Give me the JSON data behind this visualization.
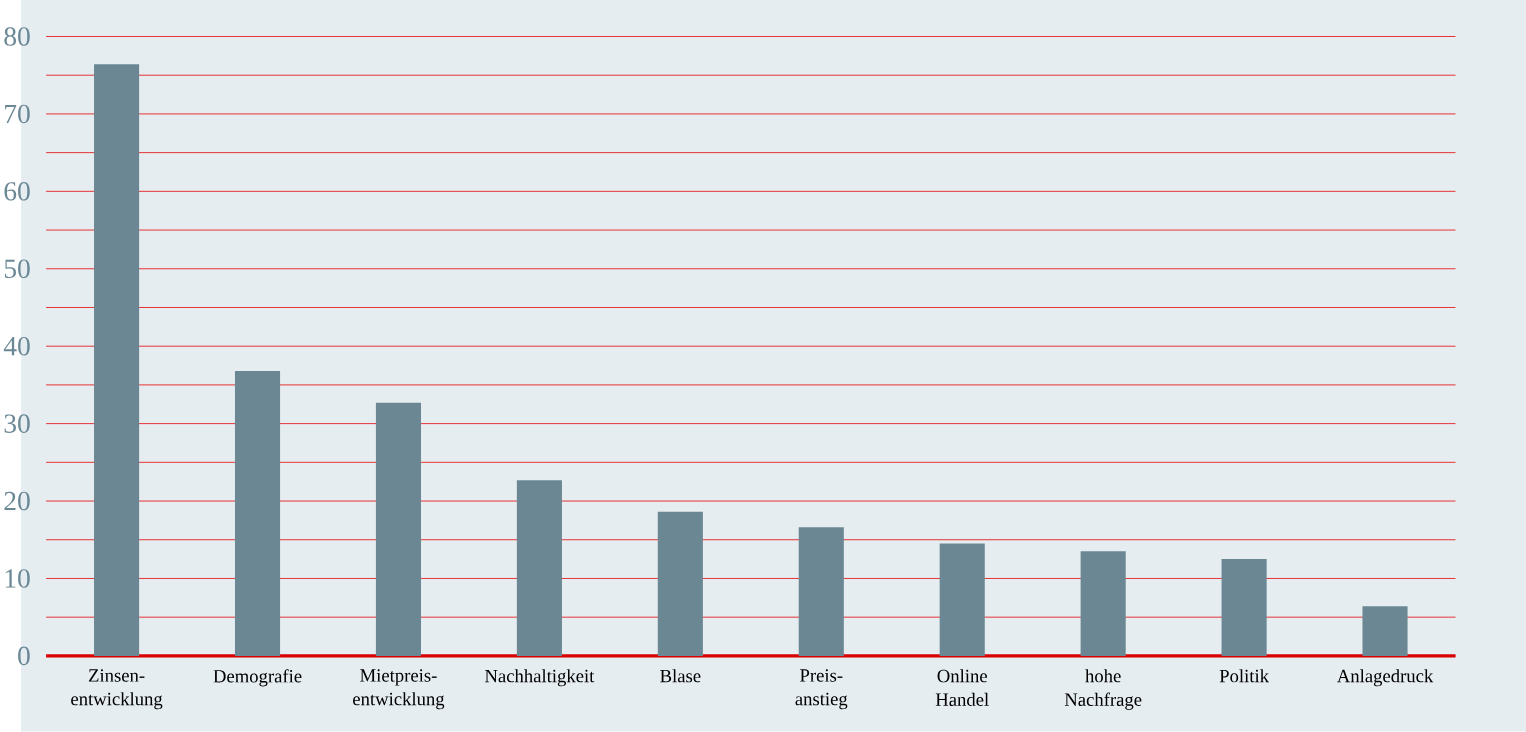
{
  "chart_data": {
    "type": "bar",
    "categories": [
      "Zinsen-\nentwicklung",
      "Demografie",
      "Mietpreis-\nentwicklung",
      "Nachhaltigkeit",
      "Blase",
      "Preis-\nanstieg",
      "Online\nHandel",
      "hohe\nNachfrage",
      "Politik",
      "Anlagedruck"
    ],
    "values": [
      76.4,
      36.8,
      32.7,
      22.7,
      18.6,
      16.6,
      14.5,
      13.5,
      12.5,
      6.4
    ],
    "color": "#6b8793",
    "ylim": [
      0,
      80
    ],
    "yticks": [
      0,
      {
        "value": 5,
        "label": null
      },
      10,
      {
        "value": 15,
        "label": null
      },
      20,
      {
        "value": 25,
        "label": null
      },
      30,
      {
        "value": 35,
        "label": null
      },
      40,
      {
        "value": 45,
        "label": null
      },
      50,
      {
        "value": 55,
        "label": null
      },
      60,
      {
        "value": 65,
        "label": null
      },
      70,
      {
        "value": 75,
        "label": null
      },
      80
    ],
    "grid": "y"
  }
}
